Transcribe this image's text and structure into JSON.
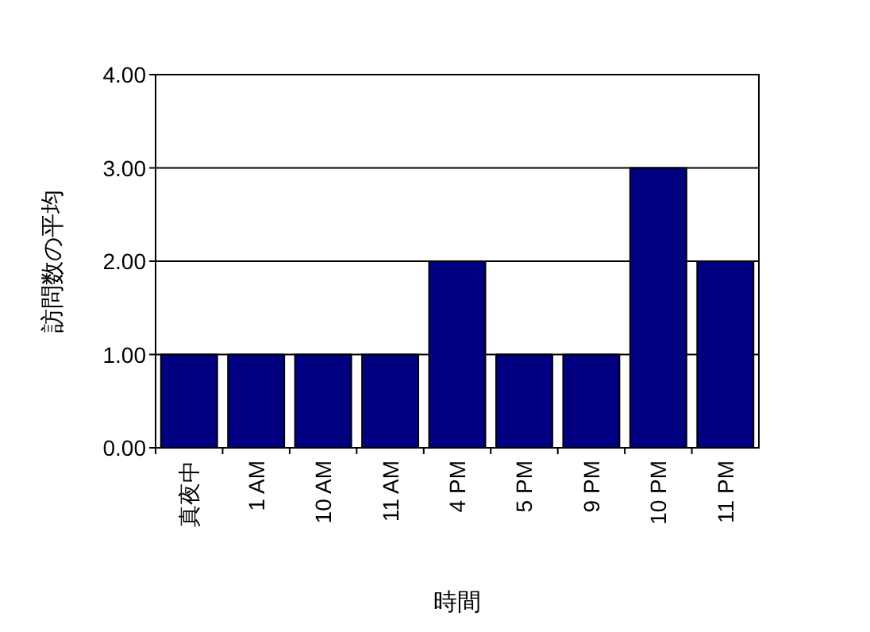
{
  "chart_data": {
    "type": "bar",
    "xlabel": "時間",
    "ylabel": "訪問数の平均",
    "categories": [
      "真夜中",
      "1 AM",
      "10 AM",
      "11 AM",
      "4 PM",
      "5 PM",
      "9 PM",
      "10 PM",
      "11 PM"
    ],
    "values": [
      1,
      1,
      1,
      1,
      2,
      1,
      1,
      3,
      2
    ],
    "color": "#000080",
    "ylim": [
      0,
      4
    ],
    "yticks": [
      {
        "value": 0,
        "label": "0.00"
      },
      {
        "value": 1,
        "label": "1.00"
      },
      {
        "value": 2,
        "label": "2.00"
      },
      {
        "value": 3,
        "label": "3.00"
      },
      {
        "value": 4,
        "label": "4.00"
      }
    ],
    "grid": "y"
  }
}
